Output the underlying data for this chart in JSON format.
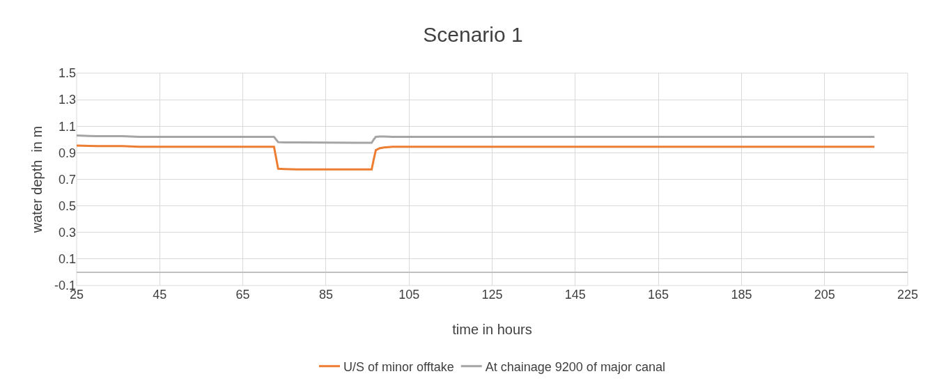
{
  "chart_data": {
    "type": "line",
    "title": "Scenario 1",
    "xlabel": "time in hours",
    "ylabel": "water depth  in m",
    "x": [
      25,
      28,
      30,
      36,
      40,
      72.5,
      73.5,
      75,
      78,
      96,
      96.5,
      97,
      98,
      99,
      101,
      217
    ],
    "series": [
      {
        "name": "U/S of minor offtake",
        "color": "#ed7d31",
        "values": [
          0.955,
          0.952,
          0.95,
          0.95,
          0.945,
          0.945,
          0.78,
          0.778,
          0.775,
          0.775,
          0.85,
          0.92,
          0.935,
          0.94,
          0.945,
          0.945
        ]
      },
      {
        "name": "At chainage 9200 of major canal",
        "color": "#a5a5a5",
        "values": [
          1.03,
          1.027,
          1.025,
          1.025,
          1.02,
          1.02,
          0.98,
          0.978,
          0.978,
          0.975,
          1.0,
          1.02,
          1.022,
          1.022,
          1.02,
          1.02
        ]
      }
    ],
    "xlim": [
      25,
      225
    ],
    "xticks": [
      25,
      45,
      65,
      85,
      105,
      125,
      145,
      165,
      185,
      205,
      225
    ],
    "ylim": [
      -0.1,
      1.5
    ],
    "yticks": [
      -0.1,
      0.1,
      0.3,
      0.5,
      0.7,
      0.9,
      1.1,
      1.3,
      1.5
    ],
    "grid": true,
    "legend": "bottom",
    "marker": "none",
    "line_style": "solid"
  }
}
